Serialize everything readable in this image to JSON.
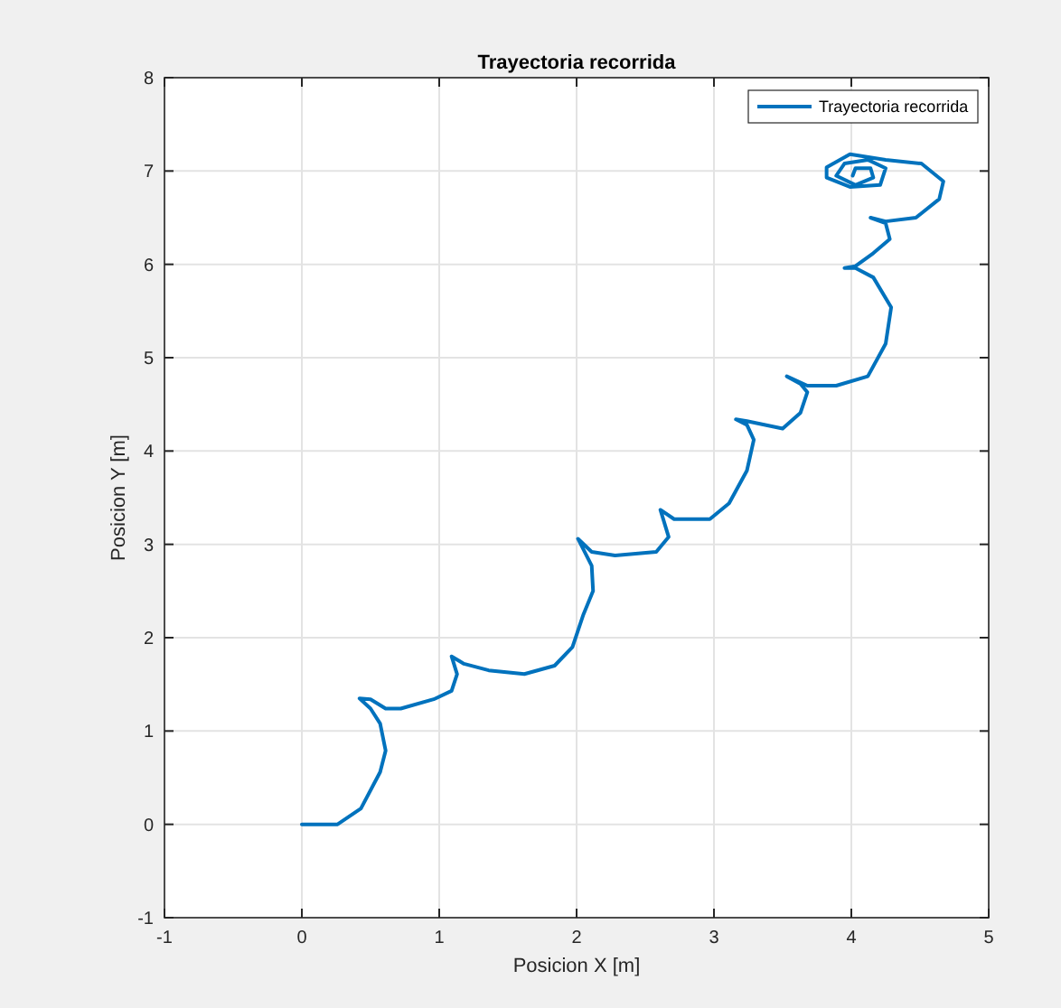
{
  "chart_data": {
    "type": "line",
    "title": "Trayectoria recorrida",
    "xlabel": "Posicion X [m]",
    "ylabel": "Posicion Y [m]",
    "xlim": [
      -1,
      5
    ],
    "xticks": [
      -1,
      0,
      1,
      2,
      3,
      4,
      5
    ],
    "ylim": [
      -1,
      8
    ],
    "yticks": [
      -1,
      0,
      1,
      2,
      3,
      4,
      5,
      6,
      7,
      8
    ],
    "grid": true,
    "legend": "top right",
    "line_style": "solid",
    "series": [
      {
        "name": "Trayectoria recorrida",
        "color": "#0072bd",
        "x": [
          0,
          0.26,
          0.43,
          0.57,
          0.61,
          0.57,
          0.5,
          0.42,
          0.5,
          0.61,
          0.72,
          0.96,
          1.09,
          1.13,
          1.09,
          1.18,
          1.36,
          1.62,
          1.84,
          1.97,
          2.05,
          2.12,
          2.11,
          2.01,
          2.11,
          2.28,
          2.58,
          2.67,
          2.61,
          2.71,
          2.97,
          3.11,
          3.24,
          3.29,
          3.24,
          3.16,
          3.24,
          3.5,
          3.63,
          3.68,
          3.63,
          3.53,
          3.68,
          3.89,
          4.12,
          4.25,
          4.29,
          4.16,
          4.03,
          3.95,
          4.03,
          4.16,
          4.28,
          4.25,
          4.14,
          4.25,
          4.47,
          4.64,
          4.67,
          4.51,
          4.25,
          3.99,
          3.82,
          3.82,
          3.99,
          4.21,
          4.25,
          4.12,
          3.95,
          3.89,
          4.03,
          4.16,
          4.14,
          4.03,
          4.01
        ],
        "values": [
          0,
          0,
          0.17,
          0.56,
          0.79,
          1.08,
          1.24,
          1.35,
          1.34,
          1.24,
          1.24,
          1.34,
          1.43,
          1.61,
          1.8,
          1.72,
          1.65,
          1.61,
          1.7,
          1.9,
          2.25,
          2.5,
          2.77,
          3.06,
          2.92,
          2.88,
          2.92,
          3.08,
          3.37,
          3.27,
          3.27,
          3.44,
          3.79,
          4.12,
          4.28,
          4.34,
          4.32,
          4.24,
          4.41,
          4.63,
          4.72,
          4.8,
          4.7,
          4.7,
          4.8,
          5.15,
          5.54,
          5.86,
          5.96,
          5.96,
          5.98,
          6.12,
          6.27,
          6.44,
          6.5,
          6.46,
          6.5,
          6.7,
          6.89,
          7.08,
          7.12,
          7.18,
          7.04,
          6.93,
          6.83,
          6.85,
          7.03,
          7.12,
          7.08,
          6.95,
          6.85,
          6.93,
          7.03,
          7.03,
          6.95
        ]
      }
    ]
  }
}
